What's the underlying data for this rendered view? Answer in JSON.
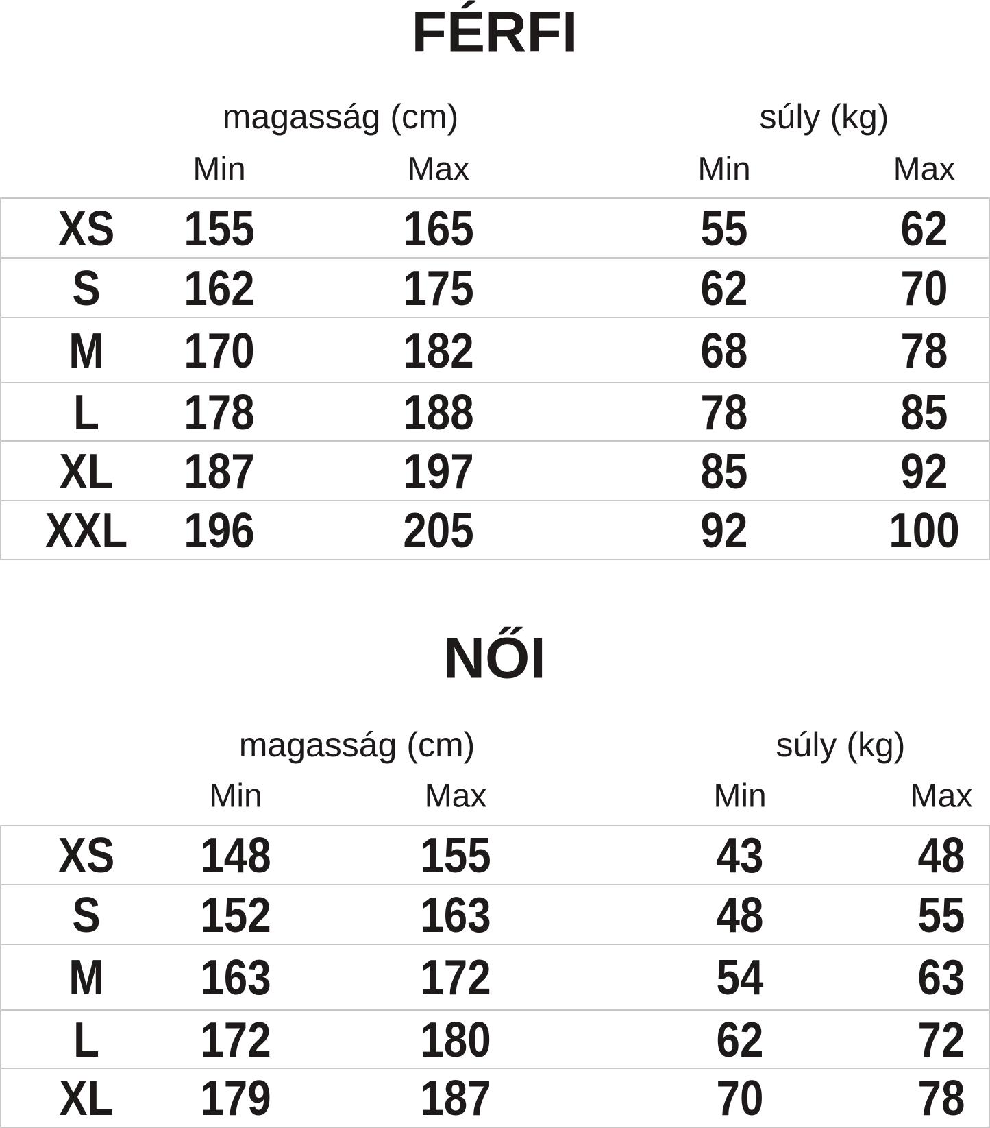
{
  "tables": [
    {
      "title": "FÉRFI",
      "height_label": "magasság (cm)",
      "weight_label": "súly (kg)",
      "min_label": "Min",
      "max_label": "Max",
      "rows": [
        {
          "size": "XS",
          "h_min": "155",
          "h_max": "165",
          "w_min": "55",
          "w_max": "62"
        },
        {
          "size": "S",
          "h_min": "162",
          "h_max": "175",
          "w_min": "62",
          "w_max": "70"
        },
        {
          "size": "M",
          "h_min": "170",
          "h_max": "182",
          "w_min": "68",
          "w_max": "78"
        },
        {
          "size": "L",
          "h_min": "178",
          "h_max": "188",
          "w_min": "78",
          "w_max": "85"
        },
        {
          "size": "XL",
          "h_min": "187",
          "h_max": "197",
          "w_min": "85",
          "w_max": "92"
        },
        {
          "size": "XXL",
          "h_min": "196",
          "h_max": "205",
          "w_min": "92",
          "w_max": "100"
        }
      ]
    },
    {
      "title": "NŐI",
      "height_label": "magasság (cm)",
      "weight_label": "súly (kg)",
      "min_label": "Min",
      "max_label": "Max",
      "rows": [
        {
          "size": "XS",
          "h_min": "148",
          "h_max": "155",
          "w_min": "43",
          "w_max": "48"
        },
        {
          "size": "S",
          "h_min": "152",
          "h_max": "163",
          "w_min": "48",
          "w_max": "55"
        },
        {
          "size": "M",
          "h_min": "163",
          "h_max": "172",
          "w_min": "54",
          "w_max": "63"
        },
        {
          "size": "L",
          "h_min": "172",
          "h_max": "180",
          "w_min": "62",
          "w_max": "72"
        },
        {
          "size": "XL",
          "h_min": "179",
          "h_max": "187",
          "w_min": "70",
          "w_max": "78"
        }
      ]
    }
  ]
}
